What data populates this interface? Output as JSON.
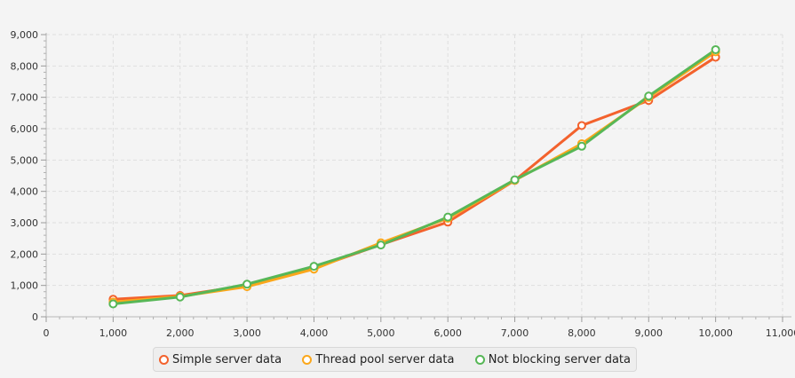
{
  "chart_data": {
    "type": "line",
    "title": "",
    "xlabel": "",
    "ylabel": "",
    "xlim": [
      0,
      11000
    ],
    "ylim": [
      0,
      9000
    ],
    "x_ticks": [
      "0",
      "1,000",
      "2,000",
      "3,000",
      "4,000",
      "5,000",
      "6,000",
      "7,000",
      "8,000",
      "9,000",
      "10,000",
      "11,000"
    ],
    "y_ticks": [
      "0",
      "1,000",
      "2,000",
      "3,000",
      "4,000",
      "5,000",
      "6,000",
      "7,000",
      "8,000",
      "9,000"
    ],
    "grid": true,
    "legend_position": "bottom",
    "x": [
      1000,
      2000,
      3000,
      4000,
      5000,
      6000,
      7000,
      8000,
      9000,
      10000
    ],
    "series": [
      {
        "name": "Simple server data",
        "color": "#f3622d",
        "values": [
          560,
          680,
          1000,
          1550,
          2300,
          3020,
          4350,
          6100,
          6900,
          8280
        ]
      },
      {
        "name": "Thread pool server data",
        "color": "#fba71b",
        "values": [
          470,
          650,
          960,
          1520,
          2360,
          3140,
          4350,
          5520,
          7000,
          8450
        ]
      },
      {
        "name": "Not blocking server data",
        "color": "#57b757",
        "values": [
          410,
          630,
          1040,
          1610,
          2290,
          3180,
          4370,
          5440,
          7040,
          8520
        ]
      }
    ]
  }
}
